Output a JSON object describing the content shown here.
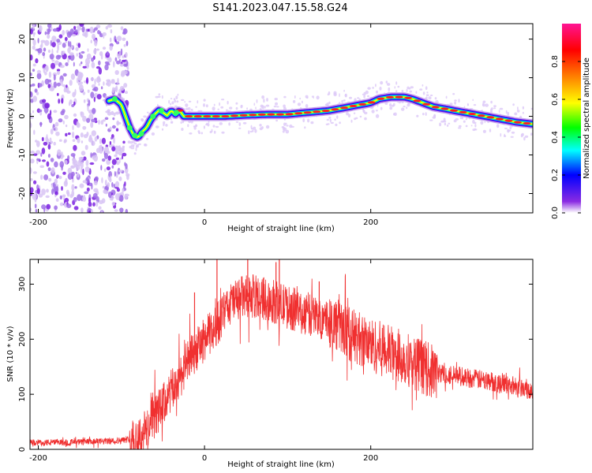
{
  "title": "S141.2023.047.15.58.G24",
  "chart_data": [
    {
      "type": "heatmap",
      "xlabel": "Height of straight line (km)",
      "ylabel": "Frequency (Hz)",
      "xlim": [
        -210,
        395
      ],
      "ylim": [
        -25,
        24
      ],
      "x_ticks": [
        -200,
        0,
        200
      ],
      "y_ticks": [
        -20,
        -10,
        0,
        10,
        20
      ],
      "colorbar": {
        "label": "Normalized spectral amplitude",
        "range": [
          0,
          1
        ],
        "ticks": [
          0.0,
          0.2,
          0.4,
          0.6,
          0.8
        ],
        "colors": [
          "#ffffff",
          "#8a2be2",
          "#0000ff",
          "#00ffff",
          "#00ff00",
          "#ffff00",
          "#ff8000",
          "#ff0000",
          "#ff1493"
        ]
      },
      "noise_region": {
        "x_from": -210,
        "x_to": -100,
        "color": "#8a2be2"
      },
      "ridge": {
        "x": [
          -115,
          -108,
          -100,
          -95,
          -90,
          -85,
          -80,
          -75,
          -70,
          -65,
          -60,
          -55,
          -50,
          -45,
          -40,
          -35,
          -30,
          -25,
          -20,
          -10,
          0,
          25,
          50,
          75,
          100,
          125,
          150,
          175,
          200,
          210,
          225,
          240,
          250,
          275,
          300,
          325,
          350,
          375,
          395
        ],
        "y": [
          4,
          4.5,
          3,
          0,
          -3,
          -5,
          -5.5,
          -4,
          -3,
          -1,
          0.5,
          1.5,
          1,
          0.2,
          1.5,
          0.5,
          1.5,
          0,
          0,
          0,
          0,
          0,
          0.3,
          0.5,
          0.5,
          1,
          1.5,
          2.5,
          3.5,
          4.5,
          5,
          5,
          4.5,
          2.5,
          1.5,
          0.5,
          -0.5,
          -1.5,
          -2
        ]
      }
    },
    {
      "type": "line",
      "xlabel": "Height of straight line (km)",
      "ylabel": "SNR (10 * v/v)",
      "xlim": [
        -210,
        395
      ],
      "ylim": [
        0,
        345
      ],
      "x_ticks": [
        -200,
        0,
        200
      ],
      "y_ticks": [
        0,
        100,
        200,
        300
      ],
      "color": "#f03030",
      "envelope": {
        "x": [
          -210,
          -150,
          -100,
          -80,
          -70,
          -60,
          -50,
          -40,
          -30,
          -20,
          -10,
          0,
          10,
          20,
          30,
          40,
          60,
          80,
          100,
          120,
          150,
          175,
          200,
          225,
          250,
          275,
          300,
          325,
          350,
          375,
          395
        ],
        "y": [
          12,
          13,
          16,
          22,
          35,
          60,
          80,
          105,
          130,
          160,
          180,
          200,
          215,
          240,
          262,
          275,
          278,
          270,
          258,
          248,
          235,
          210,
          190,
          175,
          160,
          140,
          135,
          128,
          122,
          115,
          108
        ]
      },
      "spikes": [
        {
          "x": 15,
          "y": 348
        },
        {
          "x": 52,
          "y": 345
        },
        {
          "x": 86,
          "y": 340
        },
        {
          "x": 90,
          "y": 355
        },
        {
          "x": -12,
          "y": 285
        },
        {
          "x": 138,
          "y": 305
        }
      ]
    }
  ]
}
